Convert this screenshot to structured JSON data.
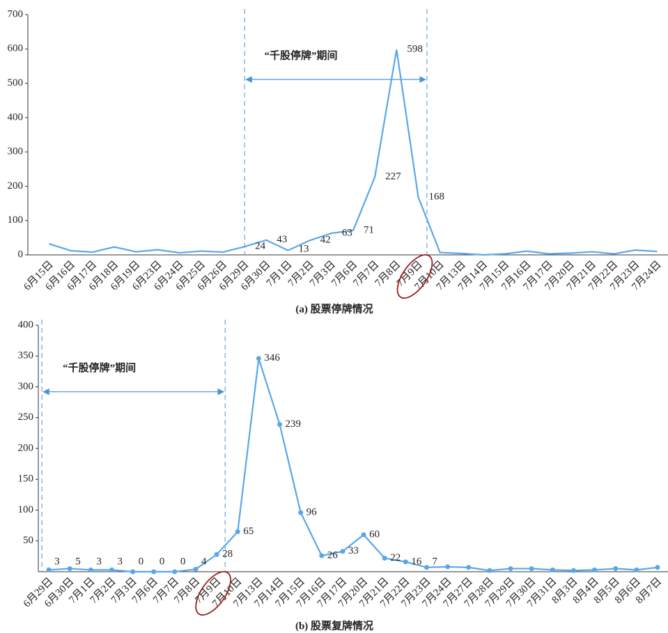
{
  "chart_data": [
    {
      "type": "line",
      "caption": "(a) 股票停牌情况",
      "categories": [
        "6月15日",
        "6月16日",
        "6月17日",
        "6月18日",
        "6月19日",
        "6月23日",
        "6月24日",
        "6月25日",
        "6月26日",
        "6月29日",
        "6月30日",
        "7月1日",
        "7月2日",
        "7月3日",
        "7月6日",
        "7月7日",
        "7月8日",
        "7月9日",
        "7月10日",
        "7月13日",
        "7月14日",
        "7月15日",
        "7月16日",
        "7月17日",
        "7月20日",
        "7月21日",
        "7月22日",
        "7月23日",
        "7月24日"
      ],
      "values": [
        32,
        12,
        8,
        23,
        9,
        15,
        6,
        11,
        8,
        24,
        43,
        13,
        42,
        63,
        71,
        227,
        598,
        168,
        7,
        4,
        0,
        3,
        11,
        3,
        5,
        9,
        3,
        14,
        10
      ],
      "color": "#5aa6e8",
      "markers": false,
      "ylim": [
        0,
        700
      ],
      "yticks": [
        0,
        100,
        200,
        300,
        400,
        500,
        600,
        700
      ],
      "data_labels_from": "6月29日",
      "data_labels_to": "7月9日",
      "annotation": {
        "text": "“千股停牌”期间",
        "start": "6月29日",
        "end": "7月9日"
      },
      "highlight_category": "7月9日"
    },
    {
      "type": "line",
      "caption": "(b) 股票复牌情况",
      "categories": [
        "6月29日",
        "6月30日",
        "7月1日",
        "7月2日",
        "7月3日",
        "7月6日",
        "7月7日",
        "7月8日",
        "7月9日",
        "7月10日",
        "7月13日",
        "7月14日",
        "7月15日",
        "7月16日",
        "7月17日",
        "7月20日",
        "7月21日",
        "7月22日",
        "7月23日",
        "7月24日",
        "7月27日",
        "7月28日",
        "7月29日",
        "7月30日",
        "7月31日",
        "8月3日",
        "8月4日",
        "8月5日",
        "8月6日",
        "8月7日"
      ],
      "values": [
        3,
        5,
        3,
        3,
        0,
        0,
        0,
        4,
        28,
        65,
        346,
        239,
        96,
        26,
        33,
        60,
        22,
        16,
        7,
        8,
        7,
        2,
        5,
        5,
        3,
        2,
        3,
        5,
        3,
        7
      ],
      "color": "#5aa6e8",
      "markers": true,
      "ylim": [
        0,
        400
      ],
      "yticks": [
        50,
        100,
        150,
        200,
        250,
        300,
        350,
        400
      ],
      "data_labels_from": "6月29日",
      "data_labels_to": "7月23日",
      "annotation": {
        "text": "“千股停牌”期间",
        "start": "6月29日",
        "end": "7月9日"
      },
      "highlight_category": "7月9日"
    }
  ]
}
